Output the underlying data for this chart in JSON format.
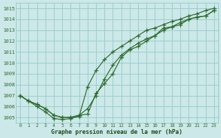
{
  "x": [
    0,
    1,
    2,
    3,
    4,
    5,
    6,
    7,
    8,
    9,
    10,
    11,
    12,
    13,
    14,
    15,
    16,
    17,
    18,
    19,
    20,
    21,
    22,
    23
  ],
  "line1": [
    1007.0,
    1006.5,
    1006.2,
    1005.8,
    1005.2,
    1005.0,
    1005.0,
    1005.2,
    1005.3,
    1007.2,
    1008.1,
    1009.0,
    1010.5,
    1011.2,
    1011.5,
    1012.0,
    1012.5,
    1013.2,
    1013.3,
    1013.7,
    1014.0,
    1014.2,
    1014.3,
    1014.8
  ],
  "line2": [
    1007.0,
    1006.5,
    1006.2,
    1005.8,
    1005.2,
    1005.0,
    1005.0,
    1005.2,
    1005.8,
    1007.0,
    1008.5,
    1009.8,
    1010.7,
    1011.3,
    1011.8,
    1012.2,
    1012.5,
    1013.0,
    1013.3,
    1013.5,
    1014.0,
    1014.2,
    1014.3,
    1014.8
  ],
  "line3": [
    1007.0,
    1006.5,
    1006.0,
    1005.5,
    1004.9,
    1004.8,
    1004.9,
    1005.1,
    1007.8,
    1009.3,
    1010.3,
    1011.0,
    1011.5,
    1012.0,
    1012.5,
    1013.0,
    1013.2,
    1013.5,
    1013.8,
    1014.0,
    1014.3,
    1014.5,
    1014.8,
    1015.0
  ],
  "line_color": "#2d6a2d",
  "bg_color": "#cce8e8",
  "grid_color": "#99cccc",
  "xlabel": "Graphe pression niveau de la mer (hPa)",
  "xlabel_color": "#1a4a1a",
  "ylim": [
    1004.5,
    1015.5
  ],
  "xlim": [
    -0.5,
    23.5
  ],
  "yticks": [
    1005,
    1006,
    1007,
    1008,
    1009,
    1010,
    1011,
    1012,
    1013,
    1014,
    1015
  ],
  "xticks": [
    0,
    1,
    2,
    3,
    4,
    5,
    6,
    7,
    8,
    9,
    10,
    11,
    12,
    13,
    14,
    15,
    16,
    17,
    18,
    19,
    20,
    21,
    22,
    23
  ],
  "marker": "+",
  "markersize": 4,
  "linewidth": 0.9
}
